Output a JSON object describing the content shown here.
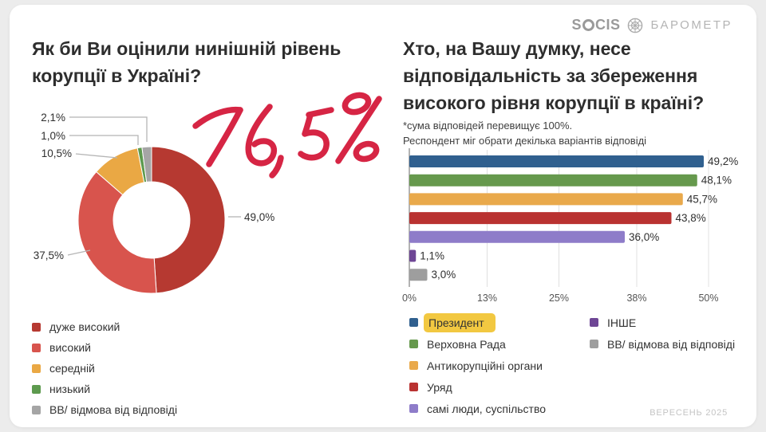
{
  "header": {
    "logo_prefix": "S",
    "logo_rest": "CIS",
    "logo_product": "БАРОМЕТР"
  },
  "annotation": {
    "text": "76,5%",
    "color": "#d62544"
  },
  "footer": {
    "date_label": "ВЕРЕСЕНЬ 2025"
  },
  "chart_data": [
    {
      "type": "pie",
      "donut": true,
      "title": "Як би Ви оцінили нинішній рівень корупції в Україні?",
      "labels": [
        "дуже високий",
        "високий",
        "середній",
        "низький",
        "ВВ/ відмова від відповіді"
      ],
      "values": [
        49.0,
        37.5,
        10.5,
        1.0,
        2.1
      ],
      "value_labels": [
        "49,0%",
        "37,5%",
        "10,5%",
        "1,0%",
        "2,1%"
      ],
      "colors": [
        "#b63931",
        "#d8544d",
        "#eaa844",
        "#5d9a4e",
        "#a5a5a5"
      ],
      "start_angle_deg": 0,
      "direction": "clockwise",
      "legend_position": "bottom-left"
    },
    {
      "type": "bar",
      "orientation": "horizontal",
      "title": "Хто, на Вашу думку, несе відповідальність за збереження високого рівня корупції в країні?",
      "subtitle_line1": "*сума відповідей перевищує 100%.",
      "subtitle_line2": "Респондент міг обрати декілька варіантів відповіді",
      "categories": [
        "Президент",
        "Верховна Рада",
        "Антикорупційні органи",
        "Уряд",
        "самі люди, суспільство",
        "ІНШЕ",
        "ВВ/ відмова від відповіді"
      ],
      "values": [
        49.2,
        48.1,
        45.7,
        43.8,
        36.0,
        1.1,
        3.0
      ],
      "value_labels": [
        "49,2%",
        "48,1%",
        "45,7%",
        "43,8%",
        "36,0%",
        "1,1%",
        "3,0%"
      ],
      "colors": [
        "#30608f",
        "#66994d",
        "#e9a94b",
        "#b93231",
        "#8e7cc9",
        "#6e4695",
        "#9e9e9e"
      ],
      "x_ticks": [
        {
          "label": "0%",
          "value": 0
        },
        {
          "label": "13%",
          "value": 13
        },
        {
          "label": "25%",
          "value": 25
        },
        {
          "label": "38%",
          "value": 38
        },
        {
          "label": "50%",
          "value": 50
        }
      ],
      "xlim": [
        0,
        50
      ],
      "grid": true,
      "highlighted_category": "Президент",
      "legend_columns": [
        [
          0,
          1,
          2,
          3,
          4
        ],
        [
          5,
          6
        ]
      ],
      "legend_position": "bottom"
    }
  ]
}
